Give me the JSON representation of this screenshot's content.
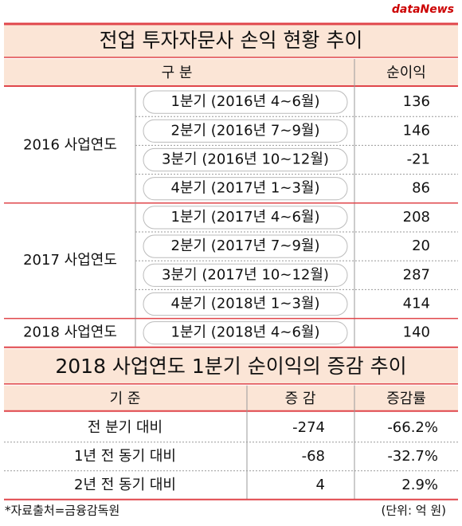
{
  "logo": "dataNews",
  "table1": {
    "title": "전업 투자자문사 손익 현황 추이",
    "headers": [
      "구  분",
      "순이익"
    ],
    "groups": [
      {
        "label": "2016 사업연도",
        "rows": [
          [
            "1분기 (2016년 4~6월)",
            136
          ],
          [
            "2분기 (2016년 7~9월)",
            146
          ],
          [
            "3분기 (2016년 10~12월)",
            -21
          ],
          [
            "4분기 (2017년 1~3월)",
            86
          ]
        ]
      },
      {
        "label": "2017 사업연도",
        "rows": [
          [
            "1분기 (2017년 4~6월)",
            208
          ],
          [
            "2분기 (2017년 7~9월)",
            20
          ],
          [
            "3분기 (2017년 10~12월)",
            287
          ],
          [
            "4분기 (2018년 1~3월)",
            414
          ]
        ]
      },
      {
        "label": "2018 사업연도",
        "rows": [
          [
            "1분기 (2018년 4~6월)",
            140
          ]
        ]
      }
    ]
  },
  "table2": {
    "title": "2018 사업연도 1분기 순이익의 증감 추이",
    "headers": [
      "기  준",
      "증  감",
      "증감률"
    ],
    "rows": [
      [
        "전 분기 대비",
        -274,
        "-66.2%"
      ],
      [
        "1년 전 동기 대비",
        -68,
        "-32.7%"
      ],
      [
        "2년 전 동기 대비",
        4,
        "2.9%"
      ]
    ]
  },
  "footer": {
    "source": "*자료출처=금융감독원",
    "unit": "(단위: 억 원)"
  }
}
